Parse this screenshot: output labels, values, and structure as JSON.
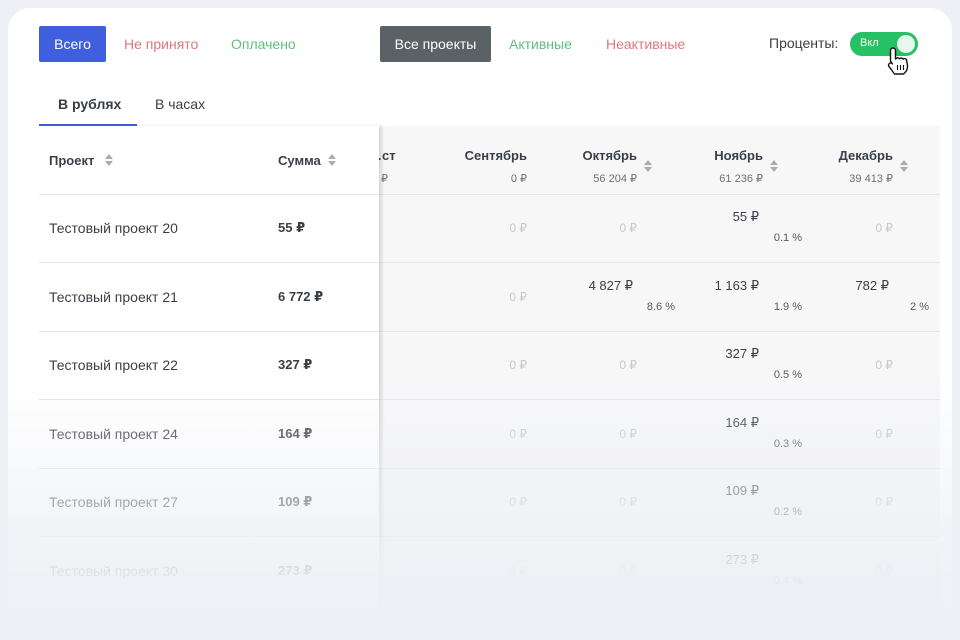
{
  "filters": {
    "all": "Всего",
    "not_accepted": "Не принято",
    "paid": "Оплачено",
    "all_projects": "Все проекты",
    "active": "Активные",
    "inactive": "Неактивные"
  },
  "percent_toggle": {
    "label": "Проценты:",
    "state_text": "Вкл",
    "on": true
  },
  "tabs": [
    "В рублях",
    "В часах"
  ],
  "table": {
    "headers": {
      "project": "Проект",
      "sum": "Сумма"
    },
    "months": [
      {
        "name": "…ст",
        "total": "₽"
      },
      {
        "name": "Сентябрь",
        "total": "0 ₽"
      },
      {
        "name": "Октябрь",
        "total": "56 204 ₽"
      },
      {
        "name": "Ноябрь",
        "total": "61 236 ₽"
      },
      {
        "name": "Декабрь",
        "total": "39 413 ₽"
      }
    ],
    "rows": [
      {
        "name": "Тестовый проект 20",
        "sum": "55 ₽",
        "cells": [
          {
            "v": "0 ₽"
          },
          {
            "v": "0 ₽"
          },
          {
            "v": "55 ₽",
            "p": "0.1 %"
          },
          {
            "v": "0 ₽"
          }
        ]
      },
      {
        "name": "Тестовый проект 21",
        "sum": "6 772 ₽",
        "cells": [
          {
            "v": "0 ₽"
          },
          {
            "v": "4 827 ₽",
            "p": "8.6 %"
          },
          {
            "v": "1 163 ₽",
            "p": "1.9 %"
          },
          {
            "v": "782 ₽",
            "p": "2 %"
          }
        ]
      },
      {
        "name": "Тестовый проект 22",
        "sum": "327 ₽",
        "cells": [
          {
            "v": "0 ₽"
          },
          {
            "v": "0 ₽"
          },
          {
            "v": "327 ₽",
            "p": "0.5 %"
          },
          {
            "v": "0 ₽"
          }
        ]
      },
      {
        "name": "Тестовый проект 24",
        "sum": "164 ₽",
        "cells": [
          {
            "v": "0 ₽"
          },
          {
            "v": "0 ₽"
          },
          {
            "v": "164 ₽",
            "p": "0.3 %"
          },
          {
            "v": "0 ₽"
          }
        ]
      },
      {
        "name": "Тестовый проект 27",
        "sum": "109 ₽",
        "cells": [
          {
            "v": "0 ₽"
          },
          {
            "v": "0 ₽"
          },
          {
            "v": "109 ₽",
            "p": "0.2 %"
          },
          {
            "v": "0 ₽"
          }
        ]
      },
      {
        "name": "Тестовый проект 30",
        "sum": "273 ₽",
        "cells": [
          {
            "v": "0 ₽"
          },
          {
            "v": "0 ₽"
          },
          {
            "v": "273 ₽",
            "p": "0.4 %"
          },
          {
            "v": "0 ₽"
          }
        ]
      }
    ]
  },
  "colors": {
    "primary": "#3f5fde",
    "green": "#26c165",
    "red": "#e0777a",
    "dark": "#5a6266"
  }
}
